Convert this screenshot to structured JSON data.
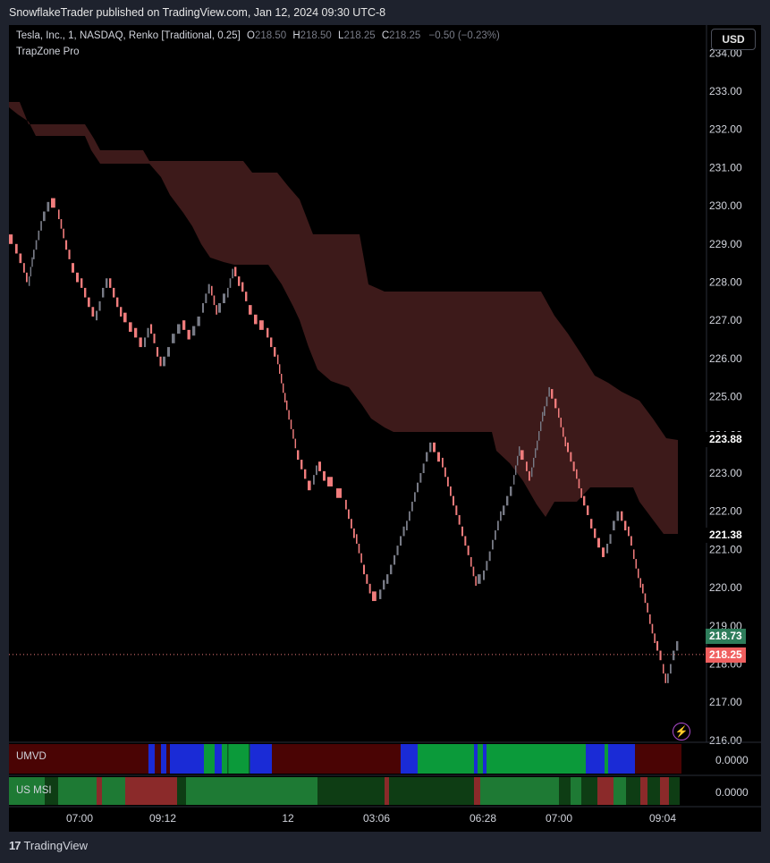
{
  "header": {
    "published": "SnowflakeTrader published on TradingView.com, Jan 12, 2024 09:30 UTC-8"
  },
  "legend": {
    "symbol": "Tesla, Inc., 1, NASDAQ, Renko [Traditional, 0.25]",
    "o_label": "O",
    "o_value": "218.50",
    "h_label": "H",
    "h_value": "218.50",
    "l_label": "L",
    "l_value": "218.25",
    "c_label": "C",
    "c_value": "218.25",
    "change": "−0.50 (−0.23%)",
    "indicator": "TrapZone Pro"
  },
  "currency": "USD",
  "price_axis": {
    "ticks": [
      "234.00",
      "233.00",
      "232.00",
      "231.00",
      "230.00",
      "229.00",
      "228.00",
      "227.00",
      "226.00",
      "225.00",
      "224.00",
      "223.00",
      "222.00",
      "221.00",
      "220.00",
      "219.00",
      "218.00",
      "217.00",
      "216.00"
    ],
    "labels": [
      {
        "value": "223.88",
        "bg": "#000000",
        "fg": "#ffffff"
      },
      {
        "value": "221.38",
        "bg": "#000000",
        "fg": "#ffffff"
      },
      {
        "value": "218.73",
        "bg": "#2e7d5b",
        "fg": "#ffffff"
      },
      {
        "value": "218.25",
        "bg": "#f05f5f",
        "fg": "#ffffff"
      }
    ]
  },
  "time_axis": [
    "07:00",
    "09:12",
    "12",
    "03:06",
    "06:28",
    "07:00",
    "09:04"
  ],
  "panes": [
    {
      "title": "UMVD",
      "value": "0.0000"
    },
    {
      "title": "US MSI",
      "value": "0.0000"
    }
  ],
  "colors": {
    "bull": "#787b86",
    "bear": "#f07c7c",
    "cloud": "#3d1a1a",
    "umvd_red": "#4a0404",
    "umvd_blue": "#1a2bd6",
    "umvd_green": "#0b9a3a",
    "msi_red": "#8b2a2a",
    "msi_green": "#1e7a34",
    "msi_dark": "#0e3d14"
  },
  "footer": {
    "brand": "TradingView"
  }
}
